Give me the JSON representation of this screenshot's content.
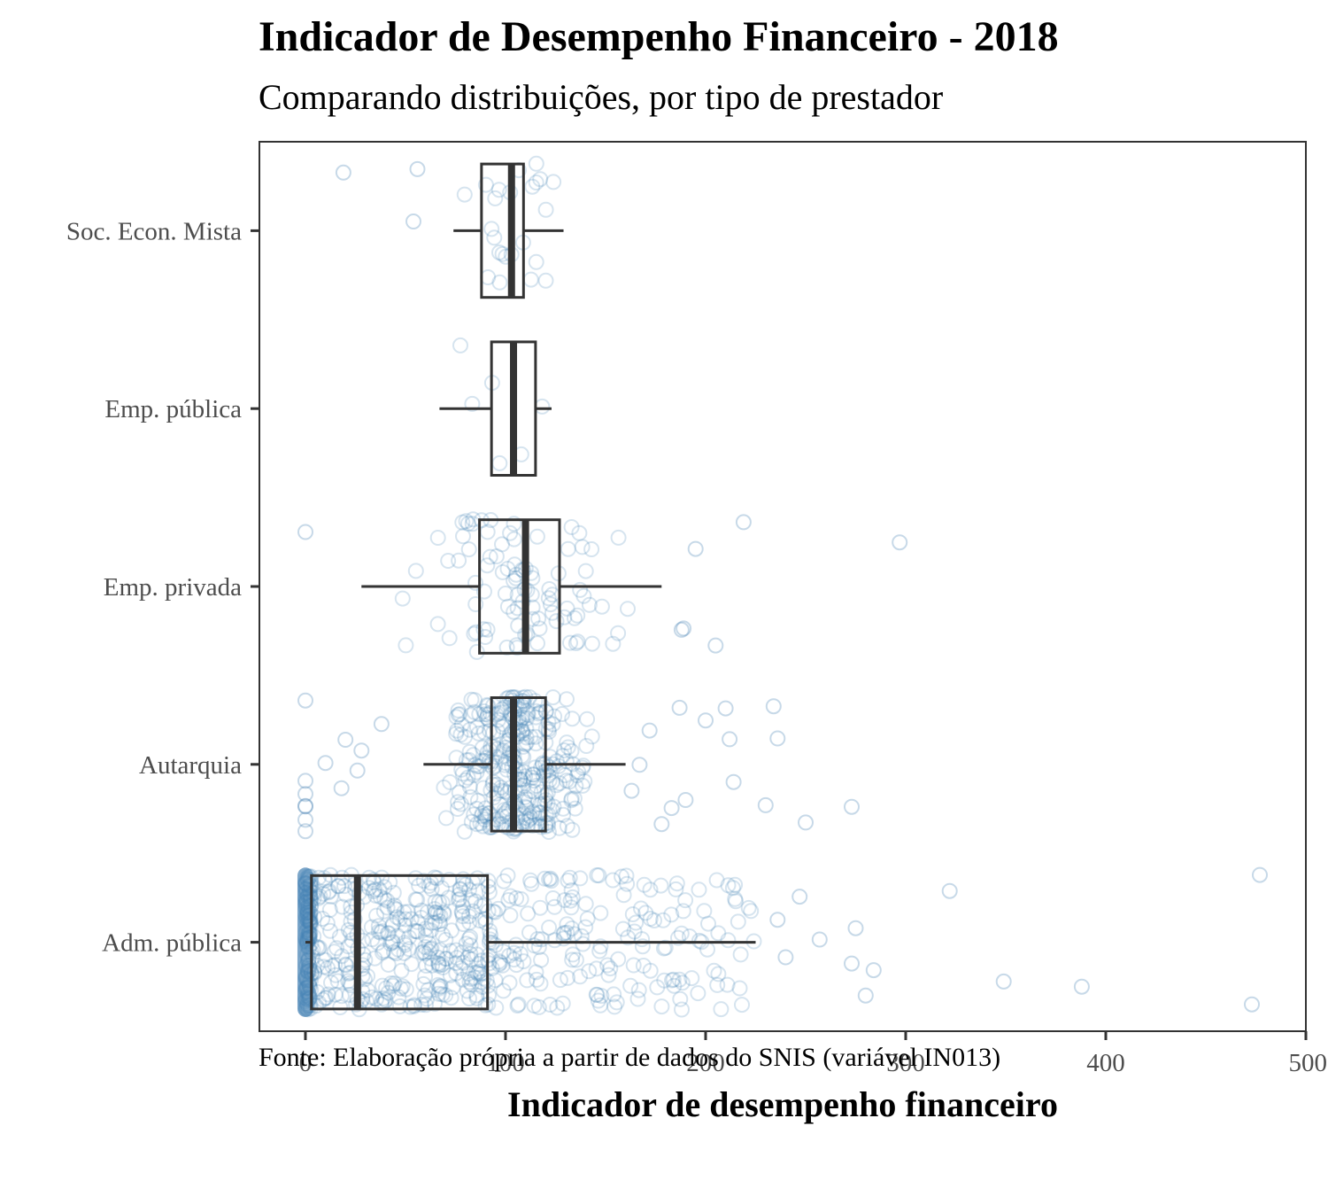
{
  "chart_data": {
    "type": "boxplot",
    "orientation": "horizontal",
    "title": "Indicador de Desempenho Financeiro - 2018",
    "subtitle": "Comparando distribuições, por tipo de prestador",
    "xlabel": "Indicador de desempenho financeiro",
    "ylabel": "",
    "caption": "Fonte: Elaboração própria a partir de dados do SNIS (variável IN013)",
    "xlim": [
      -23,
      500
    ],
    "xticks": [
      0,
      100,
      200,
      300,
      400,
      500
    ],
    "grid": false,
    "legend": "none",
    "categories": [
      "Adm. pública",
      "Autarquia",
      "Emp. privada",
      "Emp. pública",
      "Soc. Econ. Mista"
    ],
    "boxes": [
      {
        "name": "Adm. pública",
        "whisker_low": 0,
        "q1": 3,
        "median": 26,
        "q3": 91,
        "whisker_high": 225
      },
      {
        "name": "Autarquia",
        "whisker_low": 59,
        "q1": 93,
        "median": 104,
        "q3": 120,
        "whisker_high": 160
      },
      {
        "name": "Emp. privada",
        "whisker_low": 28,
        "q1": 87,
        "median": 110,
        "q3": 127,
        "whisker_high": 178
      },
      {
        "name": "Emp. pública",
        "whisker_low": 67,
        "q1": 93,
        "median": 104,
        "q3": 115,
        "whisker_high": 123
      },
      {
        "name": "Soc. Econ. Mista",
        "whisker_low": 74,
        "q1": 88,
        "median": 103,
        "q3": 109,
        "whisker_high": 129
      }
    ],
    "outliers": [
      {
        "category": "Adm. pública",
        "x": [
          236,
          240,
          247,
          257,
          273,
          275,
          280,
          284,
          322,
          349,
          388,
          473,
          477
        ]
      },
      {
        "category": "Autarquia",
        "x": [
          0,
          0,
          0,
          0,
          0,
          0,
          0,
          10,
          18,
          20,
          26,
          28,
          38,
          163,
          167,
          172,
          178,
          183,
          187,
          190,
          200,
          210,
          212,
          214,
          230,
          234,
          236,
          250,
          273
        ]
      },
      {
        "category": "Emp. privada",
        "x": [
          0,
          188,
          189,
          195,
          205,
          219,
          297
        ]
      },
      {
        "category": "Emp. pública",
        "x": []
      },
      {
        "category": "Soc. Econ. Mista",
        "x": [
          19,
          54,
          56
        ]
      }
    ],
    "jitter_points": [
      {
        "category": "Adm. pública",
        "count": 650
      },
      {
        "category": "Autarquia",
        "count": 320
      },
      {
        "category": "Emp. privada",
        "count": 95
      },
      {
        "category": "Emp. pública",
        "count": 6
      },
      {
        "category": "Soc. Econ. Mista",
        "count": 24
      }
    ],
    "point_color": "#4682b4",
    "box_color": "#333333"
  }
}
